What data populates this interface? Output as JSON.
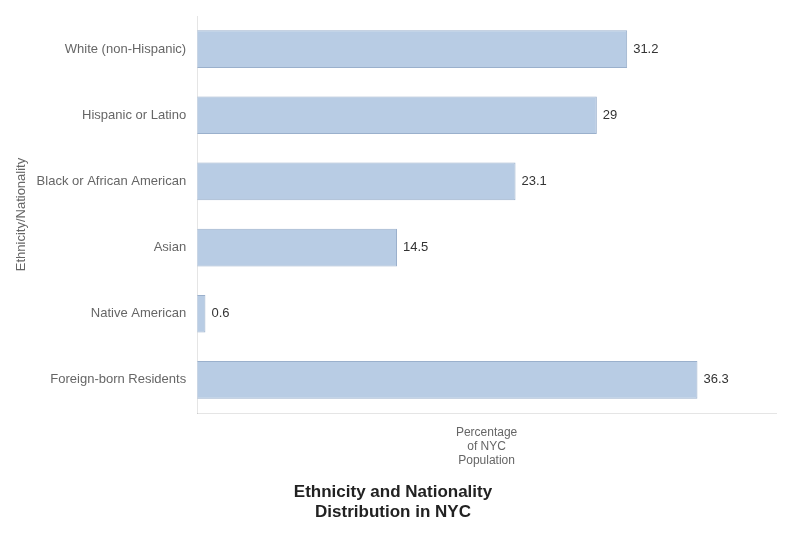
{
  "chart_data": {
    "type": "bar",
    "orientation": "horizontal",
    "title": "Ethnicity and Nationality\nDistribution in NYC",
    "xlabel": "Percentage\nof NYC\nPopulation",
    "ylabel": "Ethnicity/Nationality",
    "categories": [
      "Foreign-born Residents",
      "Native American",
      "Asian",
      "Black or African American",
      "Hispanic or Latino",
      "White (non-Hispanic)"
    ],
    "values": [
      36.3,
      0.6,
      14.5,
      23.1,
      29.0,
      31.2
    ],
    "value_labels": [
      "36.3",
      "0.6",
      "14.5",
      "23.1",
      "29",
      "31.2"
    ],
    "data_labels": true,
    "color": "#b8cce4",
    "xlim": [
      0,
      42
    ],
    "tick_labels": "y",
    "grid": false
  }
}
